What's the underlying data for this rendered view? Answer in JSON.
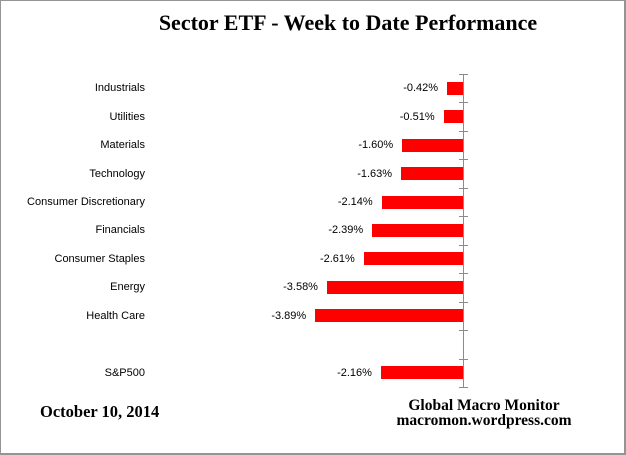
{
  "title": "Sector ETF - Week to Date Performance",
  "chart_data": {
    "type": "bar",
    "orientation": "horizontal",
    "title": "Sector ETF - Week to Date Performance",
    "categories": [
      "Industrials",
      "Utilities",
      "Materials",
      "Technology",
      "Consumer Discretionary",
      "Financials",
      "Consumer Staples",
      "Energy",
      "Health Care",
      "S&P500"
    ],
    "values": [
      -0.42,
      -0.51,
      -1.6,
      -1.63,
      -2.14,
      -2.39,
      -2.61,
      -3.58,
      -3.89,
      -2.16
    ],
    "labels": [
      "-0.42%",
      "-0.51%",
      "-1.60%",
      "-1.63%",
      "-2.14%",
      "-2.39%",
      "-2.61%",
      "-3.58%",
      "-3.89%",
      "-2.16%"
    ],
    "row_index": [
      0,
      1,
      2,
      3,
      4,
      5,
      6,
      7,
      8,
      10
    ],
    "row_count": 11,
    "bar_color": "#ff0000",
    "axis_color": "#8c8c8c",
    "grid": false,
    "legend": false,
    "value_labels_position": "outside-end-left",
    "note": "all values negative; bars extend left from zero axis; one blank category row between Health Care and S&P500"
  },
  "footer": {
    "date": "October 10, 2014",
    "credit_line1": "Global Macro Monitor",
    "credit_line2": "macromon.wordpress.com"
  }
}
